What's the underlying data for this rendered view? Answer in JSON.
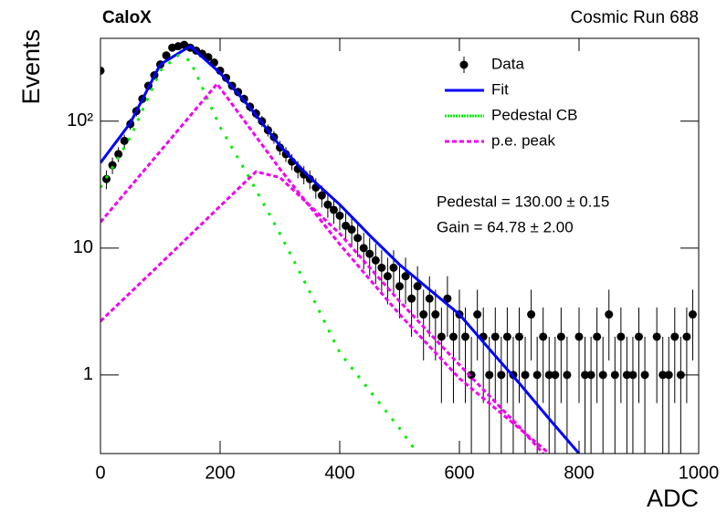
{
  "chart_data": {
    "type": "scatter",
    "title": "CaloX",
    "subtitle": "Cosmic Run 688",
    "x_label": "ADC",
    "y_label": "Events",
    "log_y": true,
    "xlim": [
      0,
      1000
    ],
    "ylim": [
      0.24,
      450
    ],
    "xticks": [
      0,
      200,
      400,
      600,
      800,
      1000
    ],
    "yticks": [
      1,
      10,
      {
        "value": 100,
        "label": "10²"
      }
    ],
    "legend": "top-right",
    "annotations": [
      "Pedestal = 130.00 ± 0.15",
      "Gain = 64.78 ± 2.00"
    ],
    "series": [
      {
        "name": "Data",
        "type": "scatter",
        "color": "#000000",
        "x": [
          0,
          10,
          20,
          30,
          40,
          50,
          60,
          70,
          80,
          90,
          100,
          110,
          120,
          130,
          140,
          150,
          160,
          170,
          180,
          190,
          200,
          210,
          220,
          230,
          240,
          250,
          260,
          270,
          280,
          290,
          300,
          310,
          320,
          330,
          340,
          350,
          360,
          370,
          380,
          390,
          400,
          410,
          420,
          430,
          440,
          450,
          460,
          470,
          480,
          490,
          500,
          510,
          520,
          530,
          540,
          550,
          560,
          570,
          580,
          590,
          600,
          610,
          620,
          630,
          640,
          650,
          660,
          670,
          680,
          690,
          700,
          710,
          720,
          730,
          740,
          750,
          760,
          770,
          780,
          790,
          800,
          810,
          820,
          830,
          840,
          850,
          860,
          870,
          880,
          890,
          900,
          910,
          920,
          930,
          940,
          950,
          960,
          970,
          980,
          990
        ],
        "values": [
          250,
          35,
          45,
          55,
          70,
          95,
          120,
          150,
          190,
          230,
          280,
          330,
          380,
          390,
          400,
          380,
          360,
          340,
          320,
          290,
          250,
          220,
          190,
          170,
          150,
          130,
          115,
          100,
          85,
          75,
          62,
          55,
          48,
          42,
          38,
          35,
          30,
          26,
          22,
          20,
          18,
          15,
          14,
          12,
          10,
          9,
          8,
          7,
          6,
          7,
          5,
          6,
          4,
          5,
          3,
          4,
          3,
          2,
          4,
          2,
          3,
          2,
          1,
          3,
          2,
          1,
          2,
          1,
          2,
          1,
          2,
          1,
          3,
          1,
          2,
          1,
          1,
          2,
          1,
          null,
          2,
          1,
          1,
          2,
          1,
          3,
          1,
          2,
          1,
          1,
          2,
          1,
          null,
          2,
          1,
          1,
          2,
          1,
          2,
          3
        ],
        "errors": [
          15.8,
          5.9,
          6.7,
          7.4,
          8.4,
          9.7,
          11,
          12.2,
          13.8,
          15.2,
          16.7,
          18.2,
          19.5,
          19.7,
          20,
          19.5,
          19,
          18.4,
          17.9,
          17,
          15.8,
          14.8,
          13.8,
          13,
          12.2,
          11.4,
          10.7,
          10,
          9.2,
          8.7,
          7.9,
          7.4,
          6.9,
          6.5,
          6.2,
          5.9,
          5.5,
          5.1,
          4.7,
          4.5,
          4.2,
          3.9,
          3.7,
          3.5,
          3.2,
          3,
          2.8,
          2.6,
          2.4,
          2.6,
          2.2,
          2.4,
          2,
          2.2,
          1.7,
          2,
          1.7,
          1.4,
          2,
          1.4,
          1.7,
          1.4,
          1,
          1.7,
          1.4,
          1,
          1.4,
          1,
          1.4,
          1,
          1.4,
          1,
          1.7,
          1,
          1.4,
          1,
          1,
          1.4,
          1,
          null,
          1.4,
          1,
          1,
          1.4,
          1,
          1.7,
          1,
          1.4,
          1,
          1,
          1.4,
          1,
          null,
          1.4,
          1,
          1,
          1.4,
          1,
          1.4,
          1.7
        ]
      },
      {
        "name": "Fit",
        "type": "line",
        "color": "#0000ff",
        "style": "solid",
        "x": [
          0,
          50,
          100,
          150,
          200,
          250,
          300,
          350,
          400,
          450,
          500,
          550,
          600,
          650,
          700,
          750,
          800
        ],
        "values": [
          47,
          97,
          280,
          390,
          240,
          128,
          64,
          36,
          22,
          12.6,
          7.4,
          4.7,
          3.0,
          1.6,
          0.86,
          0.45,
          0.24
        ]
      },
      {
        "name": "Pedestal CB",
        "type": "line",
        "color": "#00ee00",
        "style": "dotted",
        "x": [
          0,
          50,
          100,
          130,
          150,
          200,
          250,
          300,
          350,
          400,
          450,
          500,
          530
        ],
        "values": [
          30,
          75,
          250,
          330,
          300,
          90,
          35,
          13,
          4.5,
          1.5,
          0.75,
          0.38,
          0.24
        ]
      },
      {
        "name": "p.e. peak",
        "type": "line",
        "color": "#ee00ee",
        "style": "dashed",
        "curves": [
          {
            "x": [
              0,
              100,
              195,
              300,
              400,
              500,
              600,
              700,
              750
            ],
            "values": [
              16,
              58,
              197,
              42,
              10.7,
              3.0,
              0.94,
              0.38,
              0.24
            ]
          },
          {
            "x": [
              0,
              100,
              200,
              260,
              300,
              400,
              500,
              600,
              700,
              740
            ],
            "values": [
              2.65,
              7.5,
              21.4,
              40,
              36,
              13,
              3.8,
              1.2,
              0.39,
              0.24
            ]
          }
        ]
      }
    ]
  }
}
